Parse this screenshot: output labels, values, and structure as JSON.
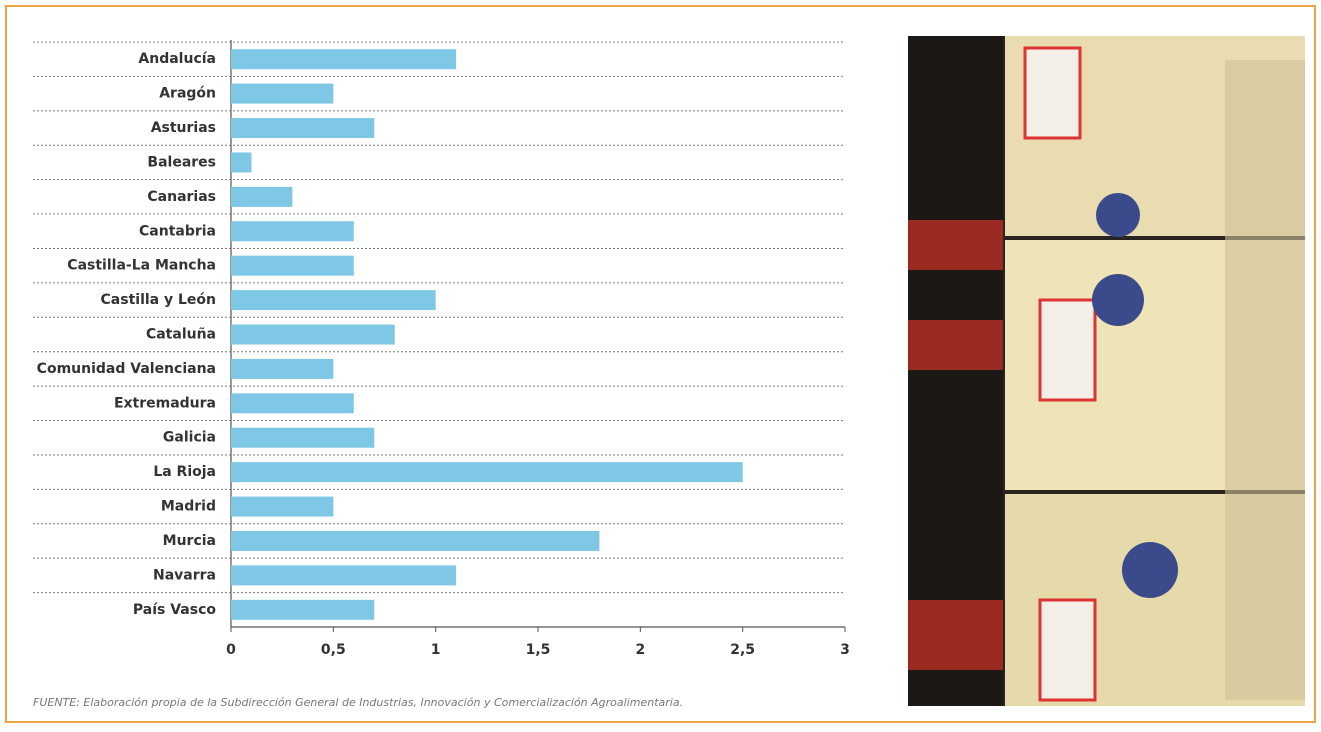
{
  "chart_data": {
    "type": "bar",
    "orientation": "horizontal",
    "categories": [
      "Andalucía",
      "Aragón",
      "Asturias",
      "Baleares",
      "Canarias",
      "Cantabria",
      "Castilla-La Mancha",
      "Castilla y León",
      "Cataluña",
      "Comunidad Valenciana",
      "Extremadura",
      "Galicia",
      "La Rioja",
      "Madrid",
      "Murcia",
      "Navarra",
      "País Vasco"
    ],
    "values": [
      1.1,
      0.5,
      0.7,
      0.1,
      0.3,
      0.6,
      0.6,
      1.0,
      0.8,
      0.5,
      0.6,
      0.7,
      2.5,
      0.5,
      1.8,
      1.1,
      0.7
    ],
    "color": "#7ec8e6",
    "xlim": [
      0,
      3
    ],
    "xticks": [
      0,
      {
        "value": 0.5,
        "label": "0,5"
      },
      1,
      {
        "value": 1.5,
        "label": "1,5"
      },
      2,
      {
        "value": 2.5,
        "label": "2,5"
      },
      3
    ],
    "source": "FUENTE: Elaboración propia de la Subdirección General de Industrias, Innovación y Comercialización Agroalimentaria."
  }
}
